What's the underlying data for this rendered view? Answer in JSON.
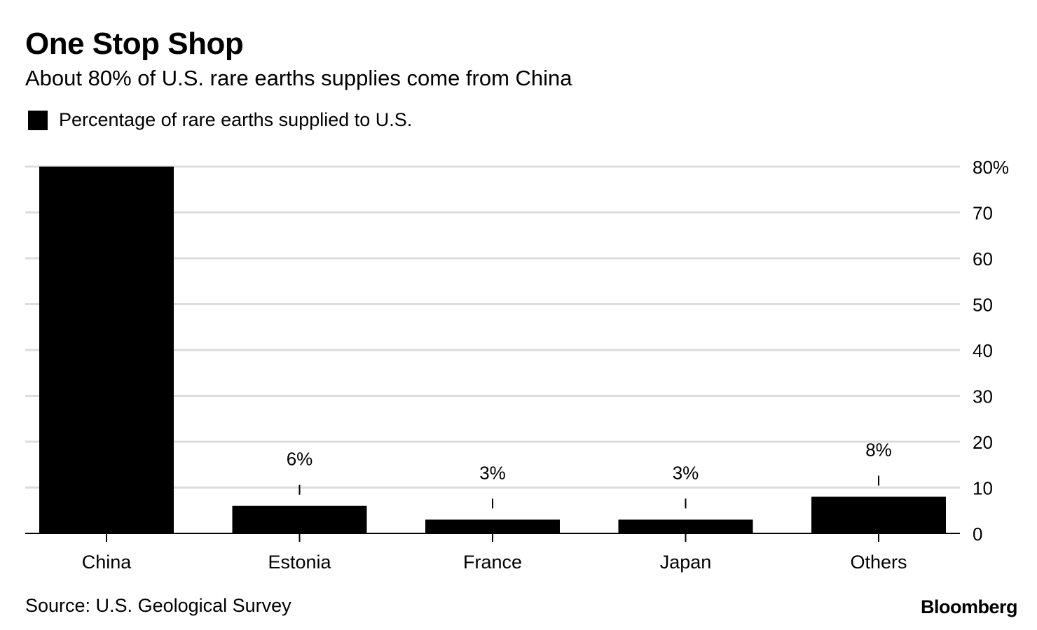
{
  "header": {
    "title": "One Stop Shop",
    "subtitle": "About 80% of U.S. rare earths supplies come from China"
  },
  "legend": {
    "label": "Percentage of rare earths supplied to U.S."
  },
  "footer": {
    "source": "Source: U.S. Geological Survey",
    "brand": "Bloomberg"
  },
  "colors": {
    "bar": "#000000",
    "grid": "#dcdcdc",
    "axis": "#000000"
  },
  "chart_data": {
    "type": "bar",
    "title": "One Stop Shop",
    "subtitle": "About 80% of U.S. rare earths supplies come from China",
    "xlabel": "",
    "ylabel": "",
    "categories": [
      "China",
      "Estonia",
      "France",
      "Japan",
      "Others"
    ],
    "series": [
      {
        "name": "Percentage of rare earths supplied to U.S.",
        "values": [
          80,
          6,
          3,
          3,
          8
        ]
      }
    ],
    "data_labels": [
      "",
      "6%",
      "3%",
      "3%",
      "8%"
    ],
    "ylim": [
      0,
      80
    ],
    "yticks": [
      0,
      10,
      20,
      30,
      40,
      50,
      60,
      70,
      80
    ],
    "ytick_labels": [
      "0",
      "10",
      "20",
      "30",
      "40",
      "50",
      "60",
      "70",
      "80%"
    ],
    "y_axis_side": "right",
    "grid": true,
    "legend_position": "top-left"
  }
}
